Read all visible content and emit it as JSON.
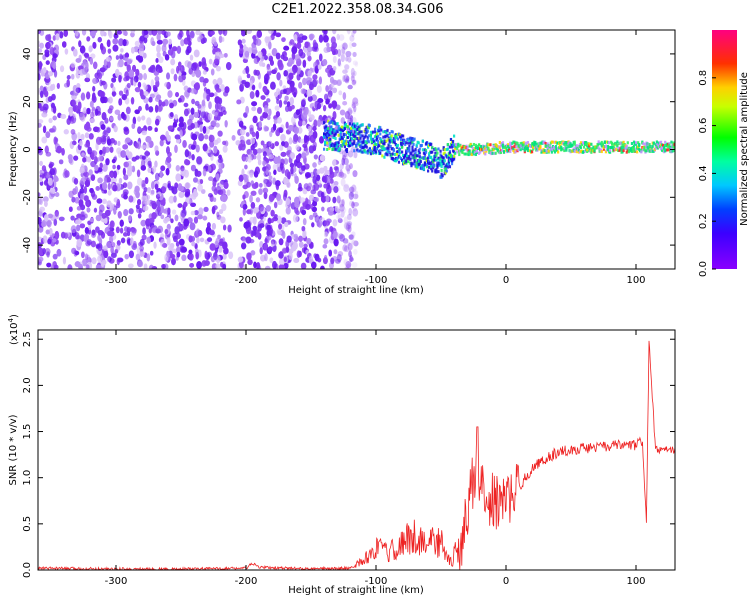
{
  "title": "C2E1.2022.358.08.34.G06",
  "colors": {
    "snr_line": "#ee2222",
    "spectrogram_scatter": "#7b2cf0",
    "spectrogram_scatter_light": "#c9a6f5",
    "axis": "#000000"
  },
  "chart_data": [
    {
      "type": "heatmap",
      "xlabel": "Height of straight line (km)",
      "ylabel": "Frequency (Hz)",
      "xlim": [
        -360,
        130
      ],
      "ylim": [
        -50,
        50
      ],
      "xticks": [
        -300,
        -200,
        -100,
        0,
        100
      ],
      "yticks": [
        -40,
        -20,
        0,
        20,
        40
      ],
      "colorbar": {
        "label": "Normalized spectral amplitude",
        "ticks": [
          0.0,
          0.2,
          0.4,
          0.6,
          0.8
        ],
        "range": [
          0,
          1
        ],
        "colormap": "rainbow (violet to red)"
      },
      "features": {
        "noise_region_x": [
          -360,
          -130
        ],
        "signal_band_x": [
          -140,
          130
        ],
        "signal_band_center_hz": [
          [
            -140,
            6
          ],
          [
            -120,
            5
          ],
          [
            -100,
            4
          ],
          [
            -80,
            0
          ],
          [
            -60,
            -3
          ],
          [
            -50,
            -6
          ],
          [
            -40,
            0
          ],
          [
            -20,
            0
          ],
          [
            0,
            1
          ],
          [
            40,
            1
          ],
          [
            80,
            1
          ],
          [
            110,
            1
          ],
          [
            130,
            1
          ]
        ]
      }
    },
    {
      "type": "line",
      "xlabel": "Height of straight line (km)",
      "ylabel": "SNR (10 * v/v)",
      "yscale_label": "(x10",
      "yscale_exp": "4",
      "xlim": [
        -360,
        130
      ],
      "ylim": [
        0,
        2.6
      ],
      "xticks": [
        -300,
        -200,
        -100,
        0,
        100
      ],
      "yticks": [
        "0.0",
        "0.5",
        "1.0",
        "1.5",
        "2.0",
        "2.5"
      ],
      "series": [
        {
          "values_x": [
            -360,
            -300,
            -250,
            -200,
            -195,
            -190,
            -150,
            -120,
            -110,
            -100,
            -90,
            -80,
            -70,
            -60,
            -50,
            -45,
            -40,
            -35,
            -30,
            -25,
            -20,
            -15,
            -10,
            -5,
            0,
            10,
            20,
            30,
            40,
            50,
            60,
            70,
            80,
            90,
            100,
            105,
            108,
            110,
            112,
            115,
            120,
            130
          ],
          "values_y": [
            0.02,
            0.01,
            0.01,
            0.02,
            0.07,
            0.03,
            0.01,
            0.02,
            0.08,
            0.2,
            0.15,
            0.25,
            0.3,
            0.25,
            0.25,
            0.1,
            0.05,
            0.2,
            0.6,
            1.0,
            0.9,
            0.8,
            0.75,
            0.7,
            0.75,
            0.9,
            1.1,
            1.2,
            1.28,
            1.3,
            1.32,
            1.33,
            1.34,
            1.35,
            1.35,
            1.4,
            0.5,
            2.5,
            2.0,
            1.3,
            1.3,
            1.3
          ]
        }
      ]
    }
  ]
}
